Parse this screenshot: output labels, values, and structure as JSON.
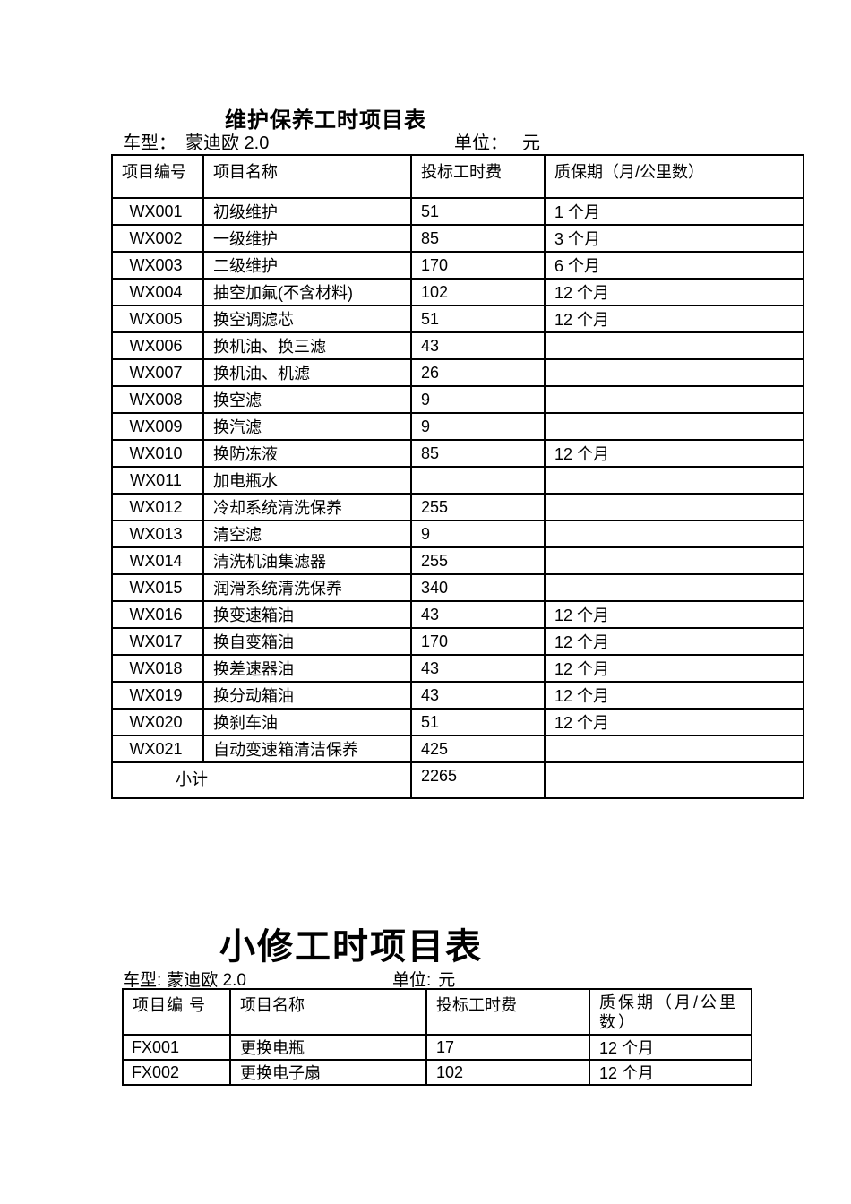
{
  "document": {
    "background": "#ffffff",
    "text_color": "#000000",
    "border_color": "#000000"
  },
  "maintenance": {
    "title": "维护保养工时项目表",
    "model_label": "车型：",
    "model_value": "蒙迪欧 2.0",
    "unit_label": "单位：",
    "unit_value": "元",
    "headers": {
      "code": "项目编号",
      "name": "项目名称",
      "fee": "投标工时费",
      "warranty": "质保期（月/公里数）"
    },
    "rows": [
      {
        "code": "WX001",
        "name": "初级维护",
        "fee": "51",
        "warranty": "1 个月"
      },
      {
        "code": "WX002",
        "name": "一级维护",
        "fee": "85",
        "warranty": "3 个月"
      },
      {
        "code": "WX003",
        "name": "二级维护",
        "fee": "170",
        "warranty": "6 个月"
      },
      {
        "code": "WX004",
        "name": "抽空加氟(不含材料)",
        "fee": "102",
        "warranty": "12 个月"
      },
      {
        "code": "WX005",
        "name": "换空调滤芯",
        "fee": "51",
        "warranty": "12 个月"
      },
      {
        "code": "WX006",
        "name": "换机油、换三滤",
        "fee": "43",
        "warranty": ""
      },
      {
        "code": "WX007",
        "name": "换机油、机滤",
        "fee": "26",
        "warranty": ""
      },
      {
        "code": "WX008",
        "name": "换空滤",
        "fee": "9",
        "warranty": ""
      },
      {
        "code": "WX009",
        "name": "换汽滤",
        "fee": "9",
        "warranty": ""
      },
      {
        "code": "WX010",
        "name": "换防冻液",
        "fee": "85",
        "warranty": "12 个月"
      },
      {
        "code": "WX011",
        "name": "加电瓶水",
        "fee": "",
        "warranty": ""
      },
      {
        "code": "WX012",
        "name": "冷却系统清洗保养",
        "fee": "255",
        "warranty": ""
      },
      {
        "code": "WX013",
        "name": "清空滤",
        "fee": "9",
        "warranty": ""
      },
      {
        "code": "WX014",
        "name": "清洗机油集滤器",
        "fee": "255",
        "warranty": ""
      },
      {
        "code": "WX015",
        "name": "润滑系统清洗保养",
        "fee": "340",
        "warranty": ""
      },
      {
        "code": "WX016",
        "name": "换变速箱油",
        "fee": "43",
        "warranty": "12 个月"
      },
      {
        "code": "WX017",
        "name": "换自变箱油",
        "fee": "170",
        "warranty": "12 个月"
      },
      {
        "code": "WX018",
        "name": "换差速器油",
        "fee": "43",
        "warranty": "12 个月"
      },
      {
        "code": "WX019",
        "name": "换分动箱油",
        "fee": "43",
        "warranty": "12 个月"
      },
      {
        "code": "WX020",
        "name": "换刹车油",
        "fee": "51",
        "warranty": "12 个月"
      },
      {
        "code": "WX021",
        "name": "自动变速箱清洁保养",
        "fee": "425",
        "warranty": ""
      }
    ],
    "subtotal_label": "小计",
    "subtotal_value": "2265",
    "subtotal_warranty": ""
  },
  "repair": {
    "title": "小修工时项目表",
    "model_label": "车型:",
    "model_value": "蒙迪欧 2.0",
    "unit_label": "单位:",
    "unit_value": "元",
    "headers": {
      "code": "项目编 号",
      "name": "项目名称",
      "fee": "投标工时费",
      "warranty": "质保期（月/公里数）"
    },
    "rows": [
      {
        "code": "FX001",
        "name": "更换电瓶",
        "fee": "17",
        "warranty": "12 个月"
      },
      {
        "code": "FX002",
        "name": "更换电子扇",
        "fee": "102",
        "warranty": "12 个月"
      }
    ]
  }
}
